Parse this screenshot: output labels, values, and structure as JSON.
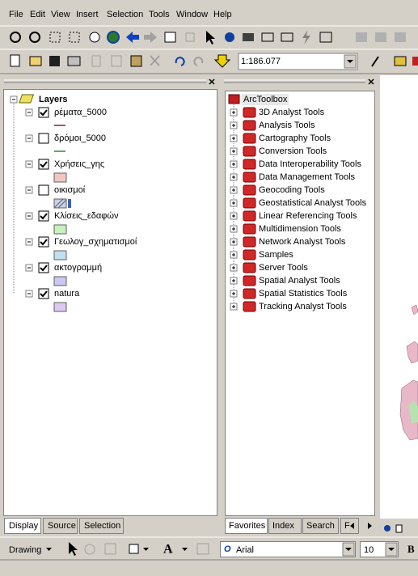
{
  "menu": [
    "File",
    "Edit",
    "View",
    "Insert",
    "Selection",
    "Tools",
    "Window",
    "Help"
  ],
  "scale": "1:186.077",
  "toc": {
    "title": "Layers",
    "layers": [
      {
        "name": "ρέματα_5000",
        "checked": true,
        "symbol": "line",
        "color": "#8b1a3a"
      },
      {
        "name": "δρόμοι_5000",
        "checked": false,
        "symbol": "line",
        "color": "#2e8b2e"
      },
      {
        "name": "Χρήσεις_γης",
        "checked": true,
        "symbol": "fill",
        "color": "#f0c8c0"
      },
      {
        "name": "οικισμοί",
        "checked": false,
        "symbol": "hatch",
        "color": "#c8d0e8"
      },
      {
        "name": "Κλίσεις_εδαφών",
        "checked": true,
        "symbol": "fill",
        "color": "#c8f0c0"
      },
      {
        "name": "Γεωλογ_σχηματισμοί",
        "checked": true,
        "symbol": "fill",
        "color": "#c0e0f0"
      },
      {
        "name": "ακτογραμμή",
        "checked": true,
        "symbol": "fill",
        "color": "#c8c8f0"
      },
      {
        "name": "natura",
        "checked": true,
        "symbol": "fill",
        "color": "#dcc8f0"
      }
    ],
    "tabs": [
      "Display",
      "Source",
      "Selection"
    ]
  },
  "toolbox": {
    "title": "ArcToolbox",
    "tools": [
      "3D Analyst Tools",
      "Analysis Tools",
      "Cartography Tools",
      "Conversion Tools",
      "Data Interoperability Tools",
      "Data Management Tools",
      "Geocoding Tools",
      "Geostatistical Analyst Tools",
      "Linear Referencing Tools",
      "Multidimension Tools",
      "Network Analyst Tools",
      "Samples",
      "Server Tools",
      "Spatial Analyst Tools",
      "Spatial Statistics Tools",
      "Tracking Analyst Tools"
    ],
    "tabs": [
      "Favorites",
      "Index",
      "Search",
      "F"
    ]
  },
  "drawing": {
    "label": "Drawing",
    "font": "Arial",
    "size": "10",
    "bold": "B"
  }
}
